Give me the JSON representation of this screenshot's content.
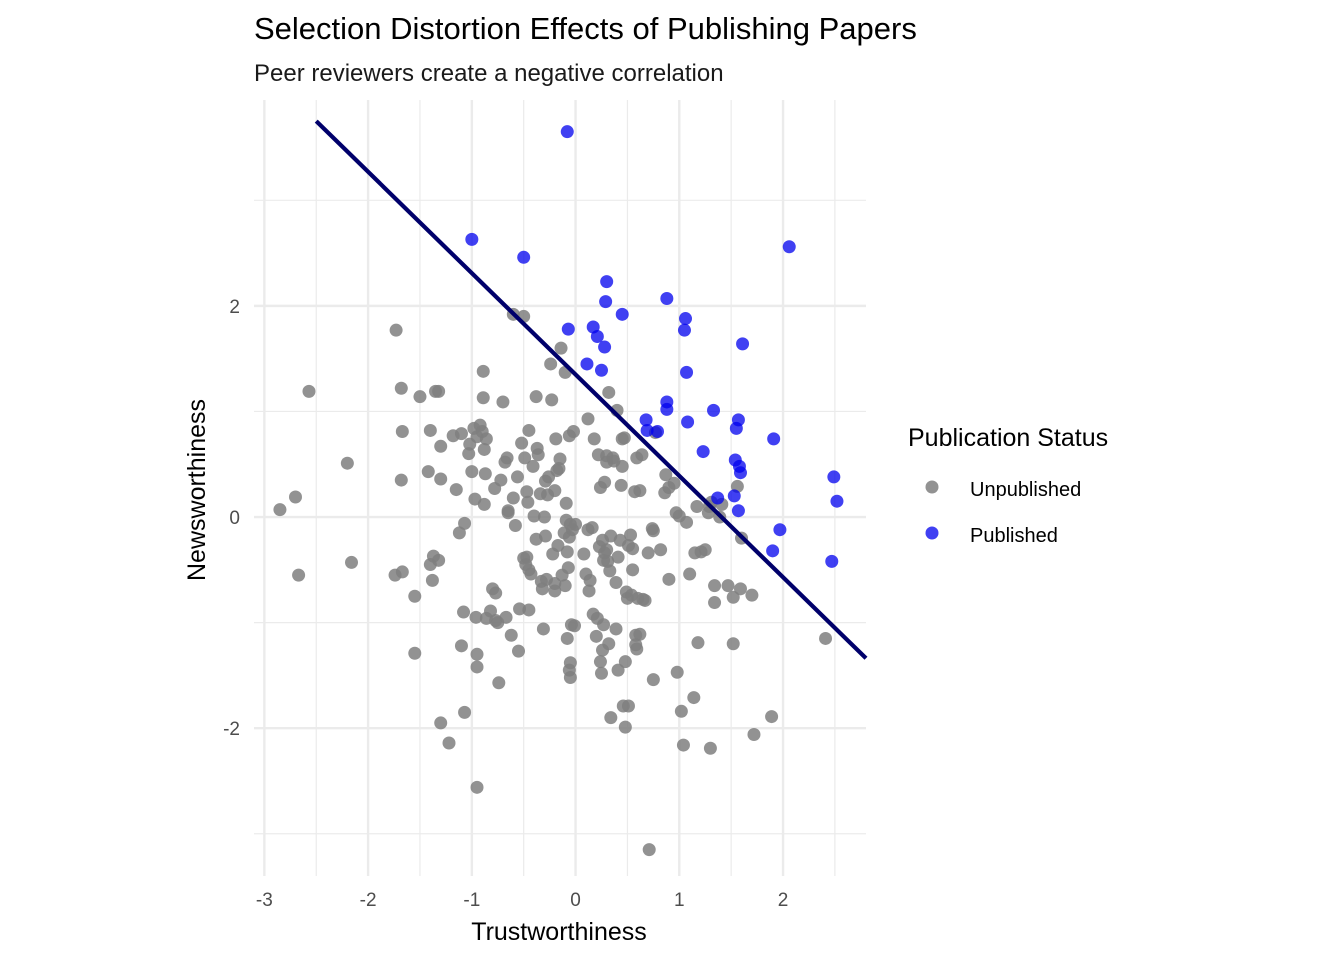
{
  "chart_data": {
    "type": "scatter",
    "title": "Selection Distortion Effects of Publishing Papers",
    "subtitle": "Peer reviewers create a negative correlation",
    "xlabel": "Trustworthiness",
    "ylabel": "Newsworthiness",
    "xlim": [
      -3.1,
      2.8
    ],
    "ylim": [
      -3.4,
      3.95
    ],
    "x_ticks": [
      "-3",
      "-2",
      "-1",
      "0",
      "1",
      "2"
    ],
    "x_tick_values": [
      -3,
      -2,
      -1,
      0,
      1,
      2
    ],
    "y_ticks": [
      "2",
      "0",
      "-2"
    ],
    "y_tick_values": [
      2,
      0,
      -2
    ],
    "grid": true,
    "legend": {
      "title": "Publication Status",
      "placement": "right",
      "entries": [
        "Unpublished",
        "Published"
      ]
    },
    "colors": {
      "Unpublished": "#7f7f7f",
      "Published": "#0000ee",
      "line": "#00006b",
      "grid": "#ebebeb"
    },
    "fit_line": {
      "slope": -0.96,
      "intercept": 1.35,
      "x_range": [
        -2.5,
        2.8
      ]
    },
    "series": [
      {
        "name": "Unpublished",
        "points": [
          [
            -2.85,
            0.07
          ],
          [
            -2.7,
            0.19
          ],
          [
            -2.67,
            -0.55
          ],
          [
            -2.57,
            1.19
          ],
          [
            -2.2,
            0.51
          ],
          [
            -2.16,
            -0.43
          ],
          [
            -1.73,
            1.77
          ],
          [
            -1.74,
            -0.55
          ],
          [
            -1.68,
            1.22
          ],
          [
            -1.67,
            -0.52
          ],
          [
            -1.67,
            0.81
          ],
          [
            -1.68,
            0.35
          ],
          [
            -1.55,
            -0.75
          ],
          [
            -1.55,
            -1.29
          ],
          [
            -1.5,
            1.14
          ],
          [
            -1.4,
            0.82
          ],
          [
            -1.42,
            0.43
          ],
          [
            -1.4,
            -0.45
          ],
          [
            -1.38,
            -0.6
          ],
          [
            -1.37,
            -0.37
          ],
          [
            -1.35,
            1.19
          ],
          [
            -1.32,
            1.19
          ],
          [
            -1.32,
            -0.41
          ],
          [
            -1.3,
            0.36
          ],
          [
            -1.3,
            0.67
          ],
          [
            -1.3,
            -1.95
          ],
          [
            -1.22,
            -2.14
          ],
          [
            -1.18,
            0.77
          ],
          [
            -1.15,
            0.26
          ],
          [
            -1.12,
            -0.15
          ],
          [
            -1.1,
            0.79
          ],
          [
            -1.1,
            -1.22
          ],
          [
            -1.07,
            -0.06
          ],
          [
            -1.08,
            -0.9
          ],
          [
            -1.07,
            -1.85
          ],
          [
            -1.03,
            0.6
          ],
          [
            -1.02,
            0.69
          ],
          [
            -1.0,
            0.43
          ],
          [
            -0.98,
            0.84
          ],
          [
            -0.97,
            0.17
          ],
          [
            -0.96,
            -0.95
          ],
          [
            -0.95,
            0.76
          ],
          [
            -0.95,
            -1.3
          ],
          [
            -0.95,
            -1.42
          ],
          [
            -0.95,
            -2.56
          ],
          [
            -0.92,
            0.87
          ],
          [
            -0.9,
            0.81
          ],
          [
            -0.89,
            1.38
          ],
          [
            -0.89,
            1.13
          ],
          [
            -0.88,
            0.64
          ],
          [
            -0.88,
            0.12
          ],
          [
            -0.87,
            0.41
          ],
          [
            -0.86,
            0.74
          ],
          [
            -0.86,
            -0.96
          ],
          [
            -0.82,
            -0.89
          ],
          [
            -0.8,
            -0.68
          ],
          [
            -0.78,
            0.27
          ],
          [
            -0.77,
            -0.72
          ],
          [
            -0.77,
            -0.98
          ],
          [
            -0.75,
            -1.0
          ],
          [
            -0.74,
            -1.57
          ],
          [
            -0.72,
            0.35
          ],
          [
            -0.7,
            1.09
          ],
          [
            -0.68,
            0.52
          ],
          [
            -0.67,
            -0.95
          ],
          [
            -0.66,
            0.56
          ],
          [
            -0.65,
            0.06
          ],
          [
            -0.65,
            0.04
          ],
          [
            -0.62,
            -1.12
          ],
          [
            -0.6,
            0.18
          ],
          [
            -0.6,
            1.92
          ],
          [
            -0.58,
            -0.08
          ],
          [
            -0.56,
            0.38
          ],
          [
            -0.55,
            -1.27
          ],
          [
            -0.54,
            -0.87
          ],
          [
            -0.52,
            0.7
          ],
          [
            -0.5,
            -0.39
          ],
          [
            -0.5,
            1.9
          ],
          [
            -0.49,
            0.56
          ],
          [
            -0.48,
            -0.45
          ],
          [
            -0.47,
            -0.38
          ],
          [
            -0.47,
            0.24
          ],
          [
            -0.46,
            0.14
          ],
          [
            -0.45,
            -0.5
          ],
          [
            -0.45,
            0.82
          ],
          [
            -0.45,
            -0.88
          ],
          [
            -0.43,
            -0.54
          ],
          [
            -0.41,
            0.48
          ],
          [
            -0.4,
            0.01
          ],
          [
            -0.38,
            1.14
          ],
          [
            -0.38,
            -0.21
          ],
          [
            -0.37,
            0.65
          ],
          [
            -0.36,
            0.59
          ],
          [
            -0.34,
            0.22
          ],
          [
            -0.33,
            -0.61
          ],
          [
            -0.32,
            -0.68
          ],
          [
            -0.31,
            -1.06
          ],
          [
            -0.3,
            0.0
          ],
          [
            -0.29,
            0.34
          ],
          [
            -0.29,
            -0.18
          ],
          [
            -0.28,
            -0.59
          ],
          [
            -0.27,
            0.21
          ],
          [
            -0.26,
            0.38
          ],
          [
            -0.24,
            1.45
          ],
          [
            -0.23,
            1.11
          ],
          [
            -0.22,
            -0.35
          ],
          [
            -0.2,
            0.25
          ],
          [
            -0.2,
            -0.7
          ],
          [
            -0.2,
            -0.63
          ],
          [
            -0.19,
            0.74
          ],
          [
            -0.18,
            0.44
          ],
          [
            -0.17,
            -0.27
          ],
          [
            -0.16,
            0.46
          ],
          [
            -0.15,
            0.55
          ],
          [
            -0.14,
            1.6
          ],
          [
            -0.13,
            -0.55
          ],
          [
            -0.11,
            -0.15
          ],
          [
            -0.1,
            -0.65
          ],
          [
            -0.1,
            1.37
          ],
          [
            -0.09,
            -0.03
          ],
          [
            -0.09,
            0.13
          ],
          [
            -0.08,
            -1.15
          ],
          [
            -0.08,
            -0.33
          ],
          [
            -0.07,
            -0.48
          ],
          [
            -0.06,
            -0.19
          ],
          [
            -0.06,
            0.77
          ],
          [
            -0.06,
            -1.45
          ],
          [
            -0.05,
            -0.07
          ],
          [
            -0.05,
            -1.38
          ],
          [
            -0.05,
            -1.52
          ],
          [
            -0.04,
            -1.02
          ],
          [
            -0.03,
            -0.12
          ],
          [
            -0.02,
            0.81
          ],
          [
            -0.01,
            -1.03
          ],
          [
            0.0,
            -0.07
          ],
          [
            0.08,
            -0.35
          ],
          [
            0.1,
            -0.54
          ],
          [
            0.12,
            -0.12
          ],
          [
            0.12,
            0.93
          ],
          [
            0.13,
            -0.7
          ],
          [
            0.14,
            -0.6
          ],
          [
            0.16,
            -0.1
          ],
          [
            0.17,
            -0.92
          ],
          [
            0.18,
            0.74
          ],
          [
            0.2,
            -1.13
          ],
          [
            0.21,
            -0.96
          ],
          [
            0.22,
            0.59
          ],
          [
            0.23,
            -0.28
          ],
          [
            0.24,
            -1.37
          ],
          [
            0.24,
            0.28
          ],
          [
            0.25,
            -1.48
          ],
          [
            0.26,
            -0.22
          ],
          [
            0.26,
            -1.26
          ],
          [
            0.27,
            -1.02
          ],
          [
            0.27,
            -0.41
          ],
          [
            0.28,
            -0.34
          ],
          [
            0.28,
            0.33
          ],
          [
            0.3,
            0.52
          ],
          [
            0.3,
            -0.31
          ],
          [
            0.3,
            0.58
          ],
          [
            0.31,
            -0.42
          ],
          [
            0.32,
            -1.2
          ],
          [
            0.32,
            1.18
          ],
          [
            0.33,
            -0.51
          ],
          [
            0.34,
            -1.9
          ],
          [
            0.34,
            -0.18
          ],
          [
            0.36,
            0.56
          ],
          [
            0.37,
            0.53
          ],
          [
            0.39,
            -0.62
          ],
          [
            0.39,
            -1.06
          ],
          [
            0.4,
            1.01
          ],
          [
            0.41,
            -0.38
          ],
          [
            0.41,
            -1.45
          ],
          [
            0.43,
            -0.22
          ],
          [
            0.44,
            0.3
          ],
          [
            0.45,
            0.48
          ],
          [
            0.45,
            0.74
          ],
          [
            0.46,
            -1.79
          ],
          [
            0.47,
            0.75
          ],
          [
            0.48,
            -1.37
          ],
          [
            0.48,
            -1.99
          ],
          [
            0.49,
            -0.71
          ],
          [
            0.5,
            -0.77
          ],
          [
            0.51,
            -1.79
          ],
          [
            0.51,
            -0.27
          ],
          [
            0.53,
            -0.17
          ],
          [
            0.54,
            -0.74
          ],
          [
            0.55,
            -0.3
          ],
          [
            0.55,
            -0.5
          ],
          [
            0.57,
            0.24
          ],
          [
            0.58,
            -1.12
          ],
          [
            0.58,
            -1.21
          ],
          [
            0.59,
            0.56
          ],
          [
            0.59,
            -1.25
          ],
          [
            0.6,
            -0.77
          ],
          [
            0.62,
            -1.11
          ],
          [
            0.62,
            0.25
          ],
          [
            0.64,
            0.59
          ],
          [
            0.65,
            -0.78
          ],
          [
            0.67,
            -0.79
          ],
          [
            0.7,
            -0.34
          ],
          [
            0.71,
            -3.15
          ],
          [
            0.74,
            -0.11
          ],
          [
            0.75,
            -1.54
          ],
          [
            0.75,
            -0.13
          ],
          [
            0.77,
            0.8
          ],
          [
            0.82,
            -0.31
          ],
          [
            0.86,
            0.23
          ],
          [
            0.87,
            0.4
          ],
          [
            0.9,
            0.28
          ],
          [
            0.9,
            -0.59
          ],
          [
            0.95,
            0.32
          ],
          [
            0.97,
            0.04
          ],
          [
            0.98,
            -1.47
          ],
          [
            1.0,
            0.01
          ],
          [
            1.02,
            -1.84
          ],
          [
            1.04,
            -2.16
          ],
          [
            1.07,
            -0.05
          ],
          [
            1.1,
            -0.54
          ],
          [
            1.14,
            -1.71
          ],
          [
            1.15,
            -0.34
          ],
          [
            1.17,
            0.1
          ],
          [
            1.18,
            -1.19
          ],
          [
            1.21,
            -0.33
          ],
          [
            1.25,
            -0.31
          ],
          [
            1.28,
            0.04
          ],
          [
            1.29,
            0.1
          ],
          [
            1.3,
            -2.19
          ],
          [
            1.31,
            0.14
          ],
          [
            1.34,
            -0.65
          ],
          [
            1.34,
            -0.81
          ],
          [
            1.39,
            0.0
          ],
          [
            1.41,
            0.12
          ],
          [
            1.47,
            -0.65
          ],
          [
            1.52,
            -0.76
          ],
          [
            1.52,
            -1.2
          ],
          [
            1.56,
            0.29
          ],
          [
            1.59,
            -0.68
          ],
          [
            1.6,
            -0.2
          ],
          [
            1.7,
            -0.74
          ],
          [
            1.72,
            -2.06
          ],
          [
            1.89,
            -1.89
          ],
          [
            2.41,
            -1.15
          ]
        ]
      },
      {
        "name": "Published",
        "points": [
          [
            -0.08,
            3.65
          ],
          [
            -1.0,
            2.63
          ],
          [
            -0.5,
            2.46
          ],
          [
            2.06,
            2.56
          ],
          [
            0.3,
            2.23
          ],
          [
            0.29,
            2.04
          ],
          [
            0.88,
            2.07
          ],
          [
            0.45,
            1.92
          ],
          [
            1.06,
            1.88
          ],
          [
            -0.07,
            1.78
          ],
          [
            0.17,
            1.8
          ],
          [
            1.05,
            1.77
          ],
          [
            0.21,
            1.71
          ],
          [
            0.28,
            1.61
          ],
          [
            1.61,
            1.64
          ],
          [
            0.11,
            1.45
          ],
          [
            0.25,
            1.39
          ],
          [
            1.07,
            1.37
          ],
          [
            0.88,
            1.09
          ],
          [
            0.88,
            1.02
          ],
          [
            1.33,
            1.01
          ],
          [
            0.68,
            0.92
          ],
          [
            1.08,
            0.9
          ],
          [
            1.57,
            0.92
          ],
          [
            0.69,
            0.82
          ],
          [
            0.79,
            0.81
          ],
          [
            1.55,
            0.84
          ],
          [
            1.91,
            0.74
          ],
          [
            1.23,
            0.62
          ],
          [
            1.54,
            0.54
          ],
          [
            1.58,
            0.48
          ],
          [
            1.59,
            0.42
          ],
          [
            2.49,
            0.38
          ],
          [
            1.53,
            0.2
          ],
          [
            2.52,
            0.15
          ],
          [
            1.37,
            0.18
          ],
          [
            1.57,
            0.06
          ],
          [
            1.97,
            -0.12
          ],
          [
            1.9,
            -0.32
          ],
          [
            2.47,
            -0.42
          ]
        ]
      }
    ]
  }
}
